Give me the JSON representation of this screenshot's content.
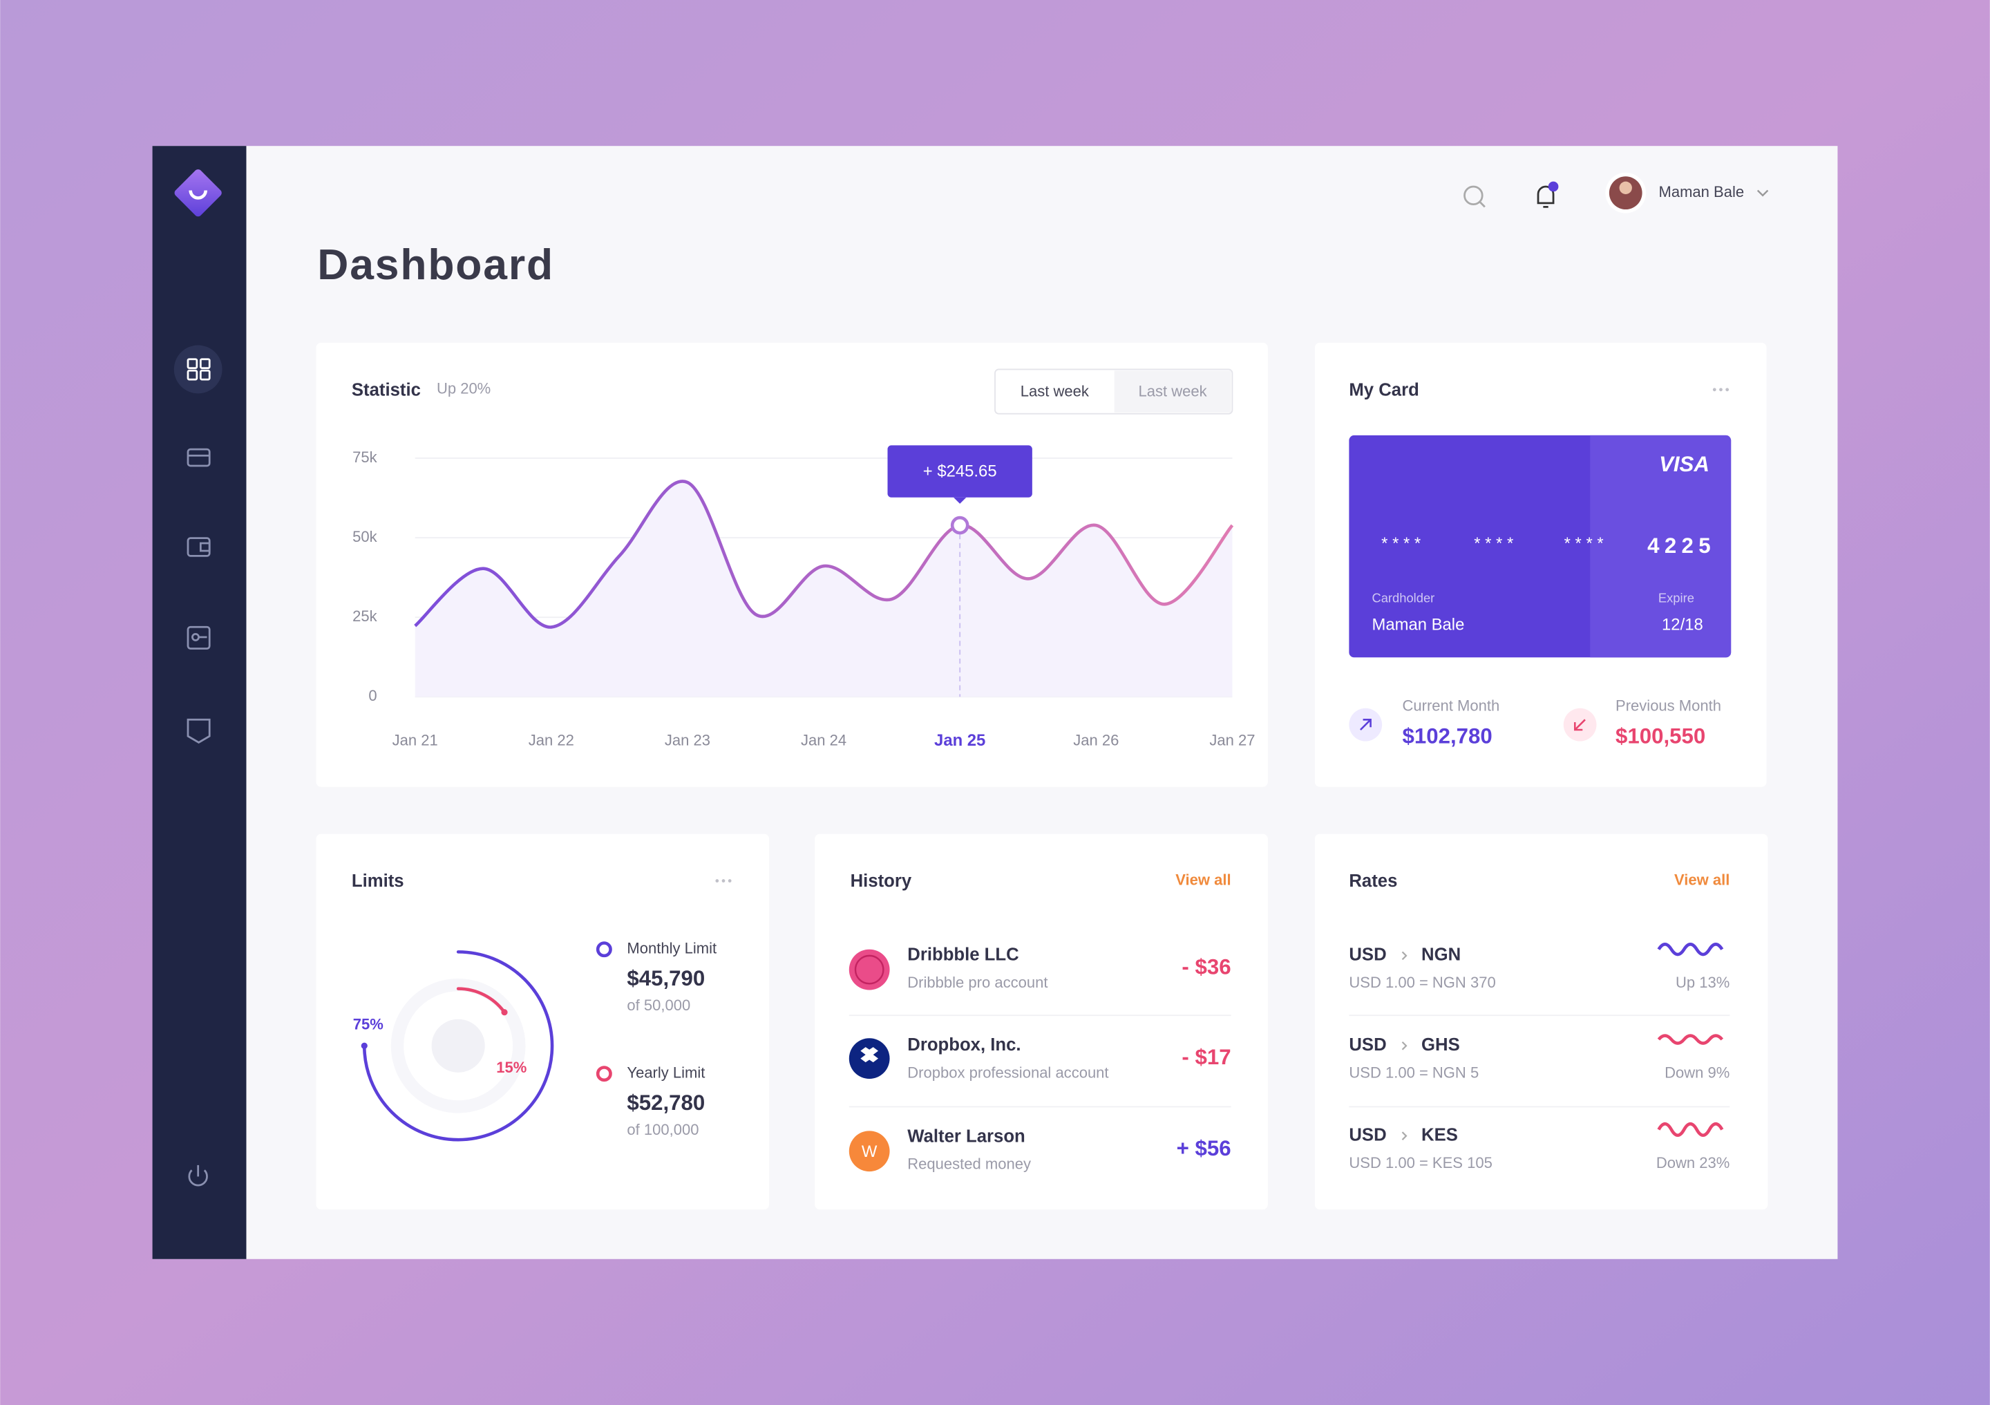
{
  "header": {
    "title": "Dashboard",
    "user": "Maman Bale"
  },
  "statistic": {
    "title": "Statistic",
    "subtitle": "Up 20%",
    "tabs": [
      "Last week",
      "Last week"
    ],
    "chart_data": {
      "type": "line",
      "categories": [
        "Jan 21",
        null,
        "Jan 22",
        null,
        "Jan 23",
        null,
        "Jan 24",
        null,
        "Jan 25",
        null,
        "Jan 26",
        null,
        "Jan 27"
      ],
      "values": [
        22300,
        40300,
        21900,
        44300,
        67400,
        25900,
        41100,
        30700,
        53900,
        37100,
        53900,
        29100,
        53900
      ],
      "colors": [
        "#7c4ddb",
        "#e07bb2"
      ],
      "ylim": [
        0,
        75000
      ],
      "yticks": [
        0,
        {
          "value": 25000,
          "label": "25k"
        },
        {
          "value": 50000,
          "label": "50k"
        },
        {
          "value": 75000,
          "label": "75k"
        }
      ],
      "grid": true,
      "tooltip": {
        "index": 8,
        "label": "+ $245.65"
      }
    }
  },
  "my_card": {
    "title": "My Card",
    "card": {
      "brand": "VISA",
      "number": [
        "* * * *",
        "* * * *",
        "* * * *",
        "4225"
      ],
      "cardholder_label": "Cardholder",
      "cardholder": "Maman Bale",
      "expire_label": "Expire",
      "expire": "12/18"
    },
    "current": {
      "label": "Current Month",
      "value": "$102,780"
    },
    "previous": {
      "label": "Previous Month",
      "value": "$100,550"
    }
  },
  "limits": {
    "title": "Limits",
    "items": [
      {
        "name": "Monthly Limit",
        "amount": "$45,790",
        "of": "of 50,000"
      },
      {
        "name": "Yearly Limit",
        "amount": "$52,780",
        "of": "of 100,000"
      }
    ],
    "chart_data": {
      "type": "donut",
      "values": [
        75,
        15
      ],
      "value_labels": [
        "75%",
        "15%"
      ],
      "colors": [
        "#5b3fd9",
        "#e8456f"
      ]
    }
  },
  "history": {
    "title": "History",
    "view_all": "View all",
    "items": [
      {
        "name": "Dribbble LLC",
        "desc": "Dribbble pro account",
        "amount": "- $36"
      },
      {
        "name": "Dropbox, Inc.",
        "desc": "Dropbox professional account",
        "amount": "- $17"
      },
      {
        "avatar": "W",
        "name": "Walter Larson",
        "desc": "Requested money",
        "amount": "+ $56"
      }
    ]
  },
  "rates": {
    "title": "Rates",
    "view_all": "View all",
    "items": [
      {
        "from": "USD",
        "to": "NGN",
        "rate": "USD 1.00 = NGN 370",
        "change": "Up 13%"
      },
      {
        "from": "USD",
        "to": "GHS",
        "rate": "USD 1.00 = NGN 5",
        "change": "Down 9%"
      },
      {
        "from": "USD",
        "to": "KES",
        "rate": "USD 1.00 = KES 105",
        "change": "Down 23%"
      }
    ]
  }
}
